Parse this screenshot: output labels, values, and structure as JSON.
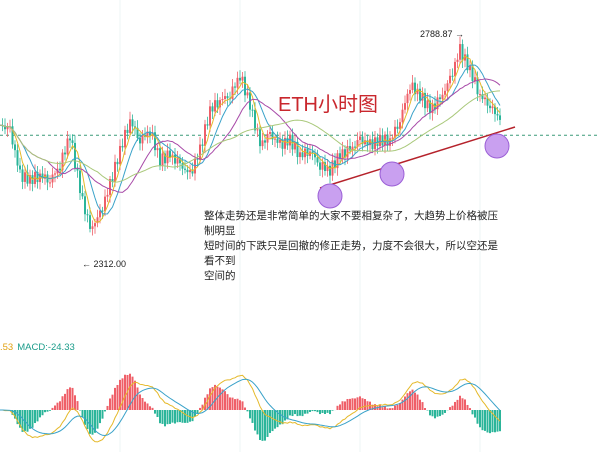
{
  "chart_data": {
    "type": "candlestick",
    "title": "ETH小时图",
    "closes": [
      2601,
      2591,
      2497,
      2487,
      2497,
      2487,
      2518,
      2581,
      2466,
      2383,
      2414,
      2477,
      2549,
      2612,
      2570,
      2591,
      2528,
      2539,
      2518,
      2497,
      2549,
      2633,
      2654,
      2664,
      2706,
      2643,
      2560,
      2581,
      2560,
      2570,
      2539,
      2549,
      2518,
      2508,
      2539,
      2549,
      2570,
      2560,
      2570,
      2570,
      2612,
      2685,
      2664,
      2633,
      2654,
      2695,
      2758,
      2716,
      2664,
      2643,
      2612
    ],
    "high_label": "2788.87",
    "low_label": "2312.00",
    "high": 2788.87,
    "low": 2312.0,
    "support_level": 2580,
    "macd_prefix": ".53",
    "macd_label": "MACD:-24.33",
    "colors": {
      "up": "#ef5f68",
      "down": "#2bb59a",
      "ma1": "#e5b92a",
      "ma2": "#3aa2c9",
      "ma3": "#a84aa8",
      "ma4": "#a9c87a",
      "trendline": "#b5222b",
      "circle": "#c9a0f0"
    }
  },
  "annotation": {
    "text_lines": [
      "整体走势还是非常简单的大家不要相复杂了，大趋势上价格被压制明显",
      "短时间的下跌只是回撤的修正走势，力度不会很大，所以空还是看不到",
      "空间的"
    ]
  }
}
